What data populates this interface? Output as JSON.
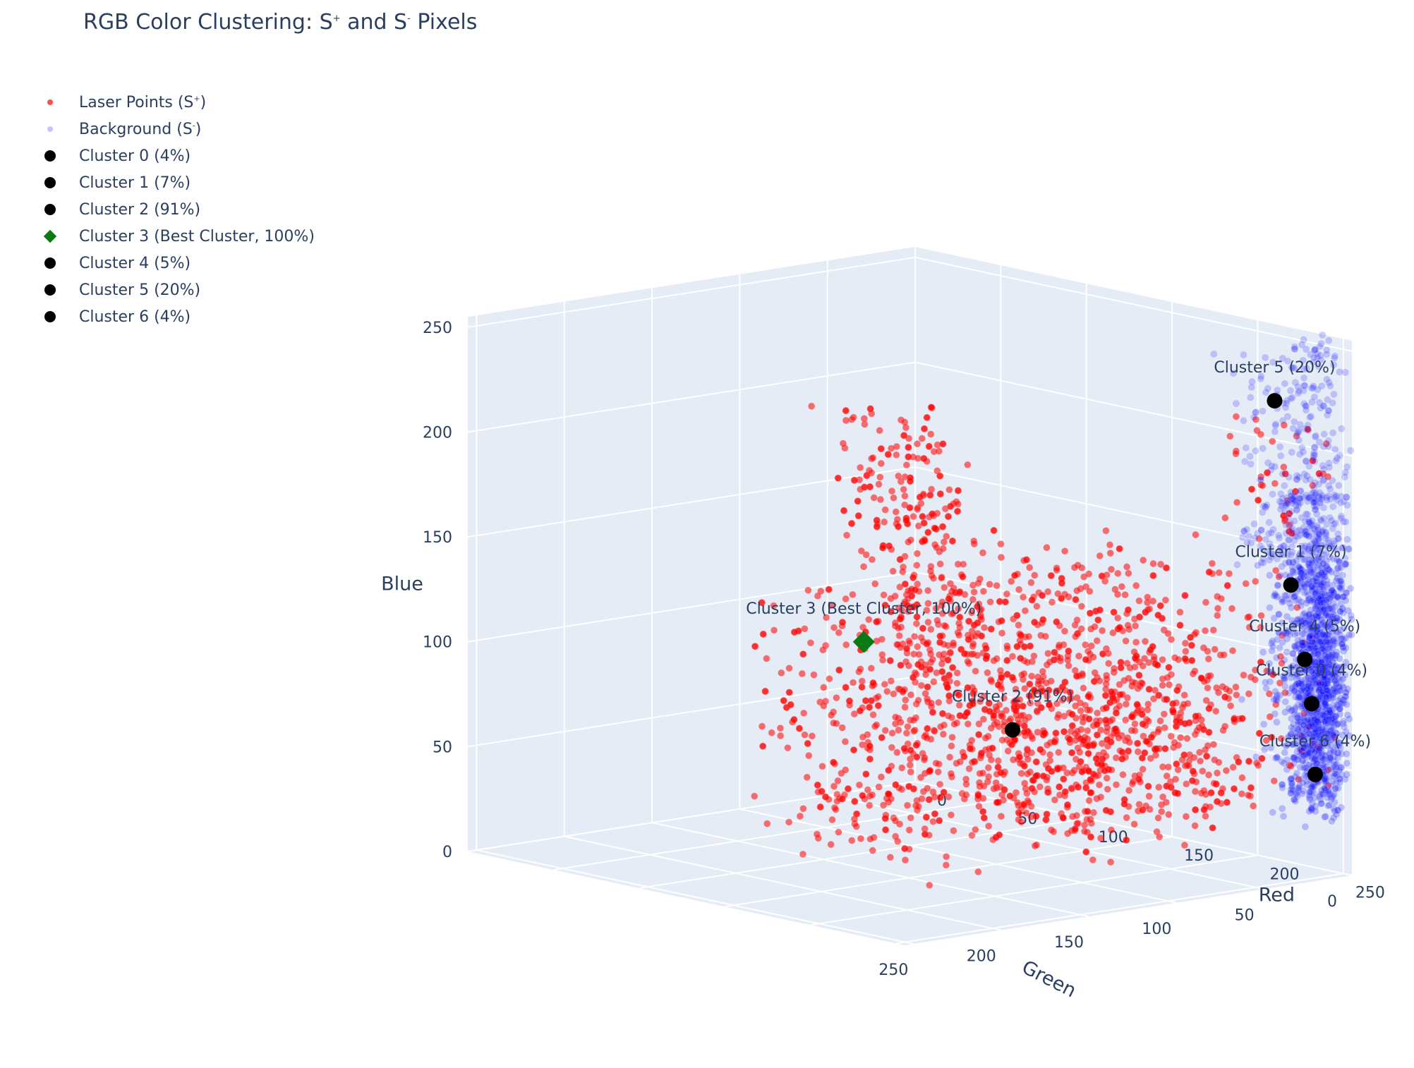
{
  "title": {
    "main": "RGB Color Clustering: S",
    "sup1": "+",
    "mid": " and S",
    "sup2": "-",
    "end": " Pixels"
  },
  "legend": [
    {
      "label": "Laser Points (S",
      "sup": "+",
      "end": ")",
      "marker": "dot-red"
    },
    {
      "label": "Background (S",
      "sup": "-",
      "end": ")",
      "marker": "dot-blue"
    },
    {
      "label": "Cluster 0 (4%)",
      "marker": "big"
    },
    {
      "label": "Cluster 1 (7%)",
      "marker": "big"
    },
    {
      "label": "Cluster 2 (91%)",
      "marker": "big"
    },
    {
      "label": "Cluster 3 (Best Cluster, 100%)",
      "marker": "diamond"
    },
    {
      "label": "Cluster 4 (5%)",
      "marker": "big"
    },
    {
      "label": "Cluster 5 (20%)",
      "marker": "big"
    },
    {
      "label": "Cluster 6 (4%)",
      "marker": "big"
    }
  ],
  "colors": {
    "laser": "#ff0000",
    "background": "#0000ff",
    "cluster": "#000000",
    "best": "#0a7a16",
    "plot_bg": "#e5ecf6",
    "grid": "#ffffff"
  },
  "chart_data": {
    "type": "scatter",
    "scatter_3d": true,
    "axes": {
      "x": {
        "label": "Red",
        "range": [
          0,
          255
        ],
        "ticks": [
          0,
          50,
          100,
          150,
          200,
          250
        ]
      },
      "y": {
        "label": "Green",
        "range": [
          0,
          255
        ],
        "ticks": [
          0,
          50,
          100,
          150,
          200,
          250
        ]
      },
      "z": {
        "label": "Blue",
        "range": [
          0,
          255
        ],
        "ticks": [
          0,
          50,
          100,
          150,
          200,
          250
        ]
      }
    },
    "series": [
      {
        "name": "Laser Points (S+)",
        "color": "#ff0000",
        "approx_count": 2000,
        "distribution": "broad cloud; red 150-255, green 30-255, blue 20-245"
      },
      {
        "name": "Background (S-)",
        "color": "#0000ff",
        "approx_count": 2000,
        "distribution": "tight column near red 240-255, green 0-60, blue 20-250"
      }
    ],
    "clusters": [
      {
        "name": "Cluster 0 (4%)",
        "label": "Cluster 0 (4%)",
        "red": 252,
        "green": 20,
        "blue": 84,
        "best": false
      },
      {
        "name": "Cluster 1 (7%)",
        "label": "Cluster 1 (7%)",
        "red": 245,
        "green": 25,
        "blue": 140,
        "best": false
      },
      {
        "name": "Cluster 2 (91%)",
        "label": "Cluster 2 (91%)",
        "red": 190,
        "green": 130,
        "blue": 75,
        "best": false
      },
      {
        "name": "Cluster 3 (Best Cluster, 100%)",
        "label": "Cluster 3 (Best Cluster, 100%)",
        "red": 180,
        "green": 205,
        "blue": 125,
        "best": true
      },
      {
        "name": "Cluster 4 (5%)",
        "label": "Cluster 4 (5%)",
        "red": 250,
        "green": 22,
        "blue": 105,
        "best": false
      },
      {
        "name": "Cluster 5 (20%)",
        "label": "Cluster 5 (20%)",
        "red": 215,
        "green": 5,
        "blue": 220,
        "best": false
      },
      {
        "name": "Cluster 6 (4%)",
        "label": "Cluster 6 (4%)",
        "red": 252,
        "green": 18,
        "blue": 50,
        "best": false
      }
    ],
    "grid": true,
    "legend_position": "top-left"
  }
}
